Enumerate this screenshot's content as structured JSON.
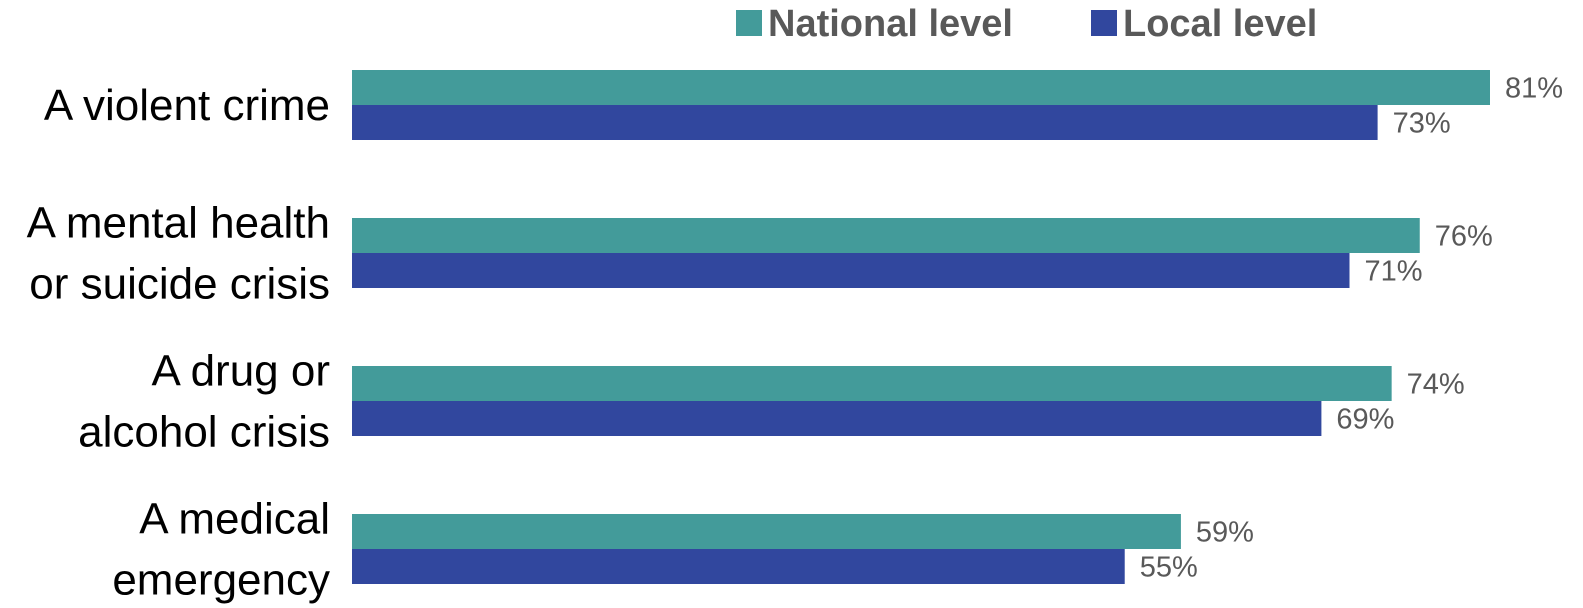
{
  "chart_data": {
    "type": "bar",
    "orientation": "horizontal",
    "categories": [
      [
        "A violent crime"
      ],
      [
        "A mental health",
        "or suicide crisis"
      ],
      [
        "A drug or",
        "alcohol crisis"
      ],
      [
        "A medical",
        "emergency"
      ]
    ],
    "series": [
      {
        "name": "National level",
        "color": "#439B9A",
        "values": [
          81,
          76,
          74,
          59
        ]
      },
      {
        "name": "Local level",
        "color": "#31479E",
        "values": [
          73,
          71,
          69,
          55
        ]
      }
    ],
    "value_suffix": "%",
    "xlim": [
      0,
      81
    ],
    "legend_position": "top-right",
    "grid": false
  }
}
